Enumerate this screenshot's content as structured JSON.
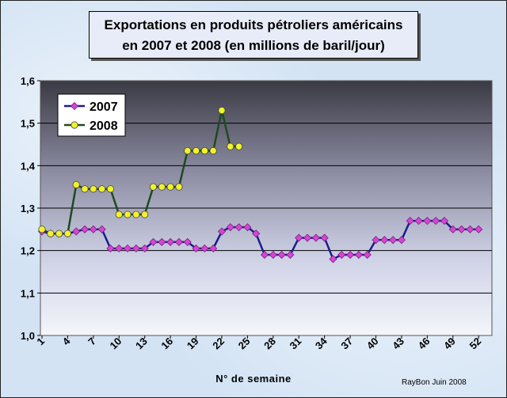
{
  "chart_data": {
    "type": "line",
    "title": "Exportations en produits pétroliers américains",
    "subtitle": "en 2007 et 2008 (en millions de baril/jour)",
    "xlabel": "N° de semaine",
    "ylabel": "",
    "ylim": [
      1.0,
      1.6
    ],
    "yticks": [
      "1,0",
      "1,1",
      "1,2",
      "1,3",
      "1,4",
      "1,5",
      "1,6"
    ],
    "xticks": [
      "1",
      "4",
      "7",
      "10",
      "13",
      "16",
      "19",
      "22",
      "25",
      "28",
      "31",
      "34",
      "37",
      "40",
      "43",
      "46",
      "49",
      "52"
    ],
    "legend_position": "top-left",
    "grid": true,
    "credit": "RayBon Juin 2008",
    "series": [
      {
        "name": "2007",
        "color": "#1c1c8c",
        "marker_color": "#d645d6",
        "x": [
          1,
          2,
          3,
          4,
          5,
          6,
          7,
          8,
          9,
          10,
          11,
          12,
          13,
          14,
          15,
          16,
          17,
          18,
          19,
          20,
          21,
          22,
          23,
          24,
          25,
          26,
          27,
          28,
          29,
          30,
          31,
          32,
          33,
          34,
          35,
          36,
          37,
          38,
          39,
          40,
          41,
          42,
          43,
          44,
          45,
          46,
          47,
          48,
          49,
          50,
          51,
          52
        ],
        "values": [
          1.245,
          1.24,
          1.24,
          1.24,
          1.245,
          1.25,
          1.25,
          1.25,
          1.205,
          1.205,
          1.205,
          1.205,
          1.205,
          1.22,
          1.22,
          1.22,
          1.22,
          1.22,
          1.205,
          1.205,
          1.205,
          1.245,
          1.255,
          1.255,
          1.255,
          1.24,
          1.19,
          1.19,
          1.19,
          1.19,
          1.23,
          1.23,
          1.23,
          1.23,
          1.18,
          1.19,
          1.19,
          1.19,
          1.19,
          1.225,
          1.225,
          1.225,
          1.225,
          1.27,
          1.27,
          1.27,
          1.27,
          1.27,
          1.25,
          1.25,
          1.25,
          1.25
        ]
      },
      {
        "name": "2008",
        "color": "#1e4a1e",
        "marker_color": "#f2f22a",
        "x": [
          1,
          2,
          3,
          4,
          5,
          6,
          7,
          8,
          9,
          10,
          11,
          12,
          13,
          14,
          15,
          16,
          17,
          18,
          19,
          20,
          21,
          22,
          23,
          24
        ],
        "values": [
          1.25,
          1.24,
          1.24,
          1.24,
          1.355,
          1.345,
          1.345,
          1.345,
          1.345,
          1.285,
          1.285,
          1.285,
          1.285,
          1.35,
          1.35,
          1.35,
          1.35,
          1.435,
          1.435,
          1.435,
          1.435,
          1.53,
          1.445,
          1.445
        ]
      }
    ]
  }
}
